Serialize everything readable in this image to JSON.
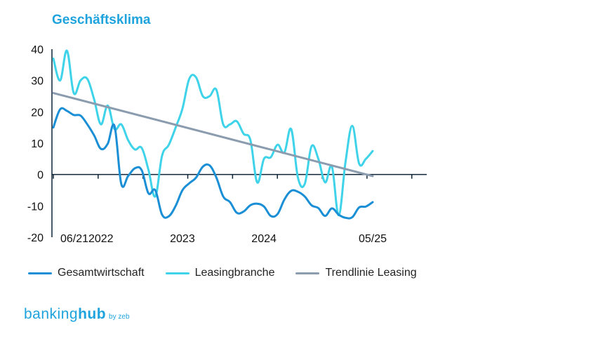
{
  "colors": {
    "gesamt": "#1b8fd6",
    "leasing": "#3fd3ea",
    "trend": "#8a9cae",
    "axis": "#0f2337",
    "brand": "#1fa3dd"
  },
  "brand": {
    "name_a": "banking",
    "name_b": "hub",
    "suffix": "by zeb"
  },
  "chart_data": {
    "type": "line",
    "title": "Geschäftsklima",
    "xlabel": "",
    "ylabel": "",
    "ylim": [
      -20,
      40
    ],
    "yticks": [
      40,
      30,
      20,
      10,
      0,
      -10,
      -20
    ],
    "grid": false,
    "legend_position": "bottom-left",
    "x_index_range": [
      0,
      47
    ],
    "x_ticks": [
      {
        "label": "06/21",
        "index": 0
      },
      {
        "label": "2022",
        "index": 7
      },
      {
        "label": "2023",
        "index": 19
      },
      {
        "label": "2024",
        "index": 31
      },
      {
        "label": "05/25",
        "index": 47
      }
    ],
    "series": [
      {
        "name": "Gesamtwirtschaft",
        "color_key": "gesamt",
        "x": [
          0,
          1,
          2,
          3,
          4,
          5,
          6,
          7,
          8,
          9,
          10,
          11,
          12,
          13,
          14,
          15,
          16,
          17,
          18,
          19,
          20,
          21,
          22,
          23,
          24,
          25,
          26,
          27,
          28,
          29,
          30,
          31,
          32,
          33,
          34,
          35,
          36,
          37,
          38,
          39,
          40,
          41,
          42,
          43,
          44,
          45,
          46,
          47
        ],
        "values": [
          15,
          20.8,
          20.3,
          19,
          18.8,
          16,
          12.5,
          8.2,
          9.8,
          15.5,
          -3,
          -0.5,
          2,
          1.4,
          -6,
          -5,
          -12.8,
          -13.3,
          -10,
          -5,
          -2.8,
          -1,
          2.5,
          2.9,
          -1,
          -7,
          -8.8,
          -12.2,
          -11.8,
          -9.8,
          -9.3,
          -10.2,
          -13.2,
          -12.6,
          -8,
          -5.2,
          -5.5,
          -7,
          -9.8,
          -10.7,
          -13.2,
          -10.8,
          -12.8,
          -13.8,
          -13.6,
          -10.5,
          -10.2,
          -8.8
        ]
      },
      {
        "name": "Leasingbranche",
        "color_key": "leasing",
        "x": [
          0,
          1,
          2,
          3,
          4,
          5,
          6,
          7,
          8,
          9,
          10,
          11,
          12,
          13,
          14,
          15,
          16,
          17,
          18,
          19,
          20,
          21,
          22,
          23,
          24,
          25,
          26,
          27,
          28,
          29,
          30,
          31,
          32,
          33,
          34,
          35,
          36,
          37,
          38,
          39,
          40,
          41,
          42,
          43,
          44,
          45,
          46,
          47
        ],
        "values": [
          37,
          30,
          39.5,
          26,
          30,
          30.5,
          24,
          16,
          22,
          14.5,
          16,
          11,
          8,
          8.5,
          1.5,
          -7,
          6,
          9.5,
          15,
          21,
          30.5,
          31,
          25,
          25,
          27,
          16,
          16,
          17,
          13,
          11,
          -2.5,
          5,
          5.5,
          9.5,
          7,
          14.5,
          -1,
          -3,
          9,
          5,
          -2.5,
          2.5,
          -13,
          4,
          15.5,
          3.5,
          5,
          7.5
        ]
      },
      {
        "name": "Trendlinie Leasing",
        "color_key": "trend",
        "x": [
          0,
          47
        ],
        "values": [
          26,
          -0.5
        ]
      }
    ]
  }
}
